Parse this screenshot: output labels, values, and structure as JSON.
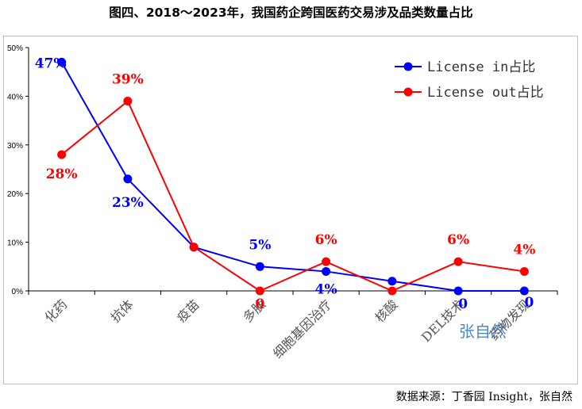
{
  "title": "图四、2018～2023年，我国药企跨国医药交易涉及品类数量占比",
  "source": "数据来源：丁香园 Insight，张自然",
  "watermark": "张自然",
  "chart_data": {
    "type": "line",
    "categories": [
      "化药",
      "抗体",
      "疫苗",
      "多肽",
      "细胞基因治疗",
      "核酸",
      "DEL技术",
      "药物发现"
    ],
    "series": [
      {
        "name": "License in占比",
        "color": "#0000ff",
        "values": [
          47,
          23,
          9,
          5,
          4,
          2,
          0,
          0
        ],
        "labels": [
          "47%",
          "23%",
          "",
          "5%",
          "4%",
          "",
          "0",
          "0"
        ]
      },
      {
        "name": "License out占比",
        "color": "#ff0000",
        "values": [
          28,
          39,
          9,
          0,
          6,
          0,
          6,
          4
        ],
        "labels": [
          "28%",
          "39%",
          "",
          "0",
          "6%",
          "",
          "6%",
          "4%"
        ]
      }
    ],
    "yticks": [
      "0%",
      "10%",
      "20%",
      "30%",
      "40%",
      "50%"
    ],
    "ylim": [
      0,
      50
    ],
    "legend_position": "top-right"
  }
}
